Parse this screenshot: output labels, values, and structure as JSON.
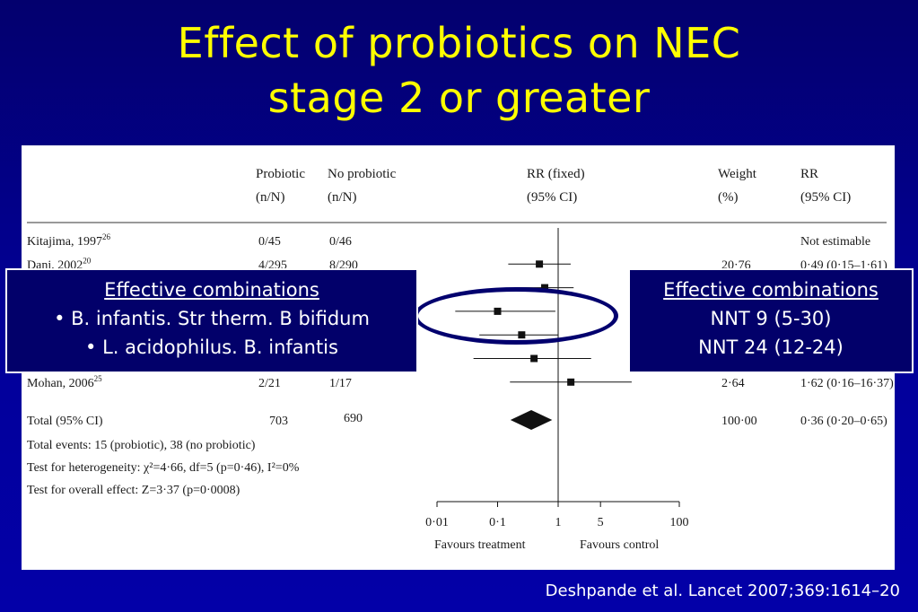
{
  "slide": {
    "title_line1": "Effect of probiotics on NEC",
    "title_line2": "stage 2 or greater",
    "citation": "Deshpande et al. Lancet 2007;369:1614–20"
  },
  "table": {
    "headers": {
      "probiotic_1": "Probiotic",
      "probiotic_2": "(n/N)",
      "noprobiotic_1": "No probiotic",
      "noprobiotic_2": "(n/N)",
      "rr_fixed_1": "RR (fixed)",
      "rr_fixed_2": "(95% CI)",
      "weight_1": "Weight",
      "weight_2": "(%)",
      "rr_1": "RR",
      "rr_2": "(95% CI)"
    },
    "summary_lines": [
      "Total events: 15 (probiotic), 38 (no probiotic)",
      "Test for heterogeneity: χ²=4·66, df=5 (p=0·46), I²=0%",
      "Test for overall effect: Z=3·37 (p=0·0008)"
    ]
  },
  "callout_left": {
    "heading": "Effective combinations",
    "line1": "• B. infantis. Str therm. B bifidum",
    "line2": "• L. acidophilus. B. infantis"
  },
  "callout_right": {
    "heading": "Effective combinations",
    "line1": "NNT 9 (5-30)",
    "line2": "NNT 24  (12-24)"
  },
  "chart_data": {
    "type": "forest",
    "x_scale": "log",
    "xlim": [
      0.01,
      100
    ],
    "ticks": [
      0.01,
      0.1,
      1,
      5,
      100
    ],
    "tick_labels": [
      "0·01",
      "0·1",
      "1",
      "5",
      "100"
    ],
    "xlabel_left": "Favours treatment",
    "xlabel_right": "Favours control",
    "studies": [
      {
        "name": "Kitajima, 1997",
        "sup": "26",
        "probiotic": "0/45",
        "no_probiotic": "0/46",
        "weight": "",
        "rr_text": "Not estimable",
        "rr": null,
        "lo": null,
        "hi": null
      },
      {
        "name": "Dani, 2002",
        "sup": "20",
        "probiotic": "4/295",
        "no_probiotic": "8/290",
        "weight": "20·76",
        "rr_text": "0·49 (0·15–1·61)",
        "rr": 0.49,
        "lo": 0.15,
        "hi": 1.61
      },
      {
        "name": "",
        "sup": "",
        "probiotic": "",
        "no_probiotic": "",
        "weight": "",
        "rr_text": "",
        "rr": 0.6,
        "lo": 0.2,
        "hi": 1.8
      },
      {
        "name": "",
        "sup": "",
        "probiotic": "",
        "no_probiotic": "",
        "weight": "",
        "rr_text": "",
        "rr": 0.1,
        "lo": 0.02,
        "hi": 0.9
      },
      {
        "name": "",
        "sup": "",
        "probiotic": "",
        "no_probiotic": "",
        "weight": "",
        "rr_text": "",
        "rr": 0.25,
        "lo": 0.05,
        "hi": 1.0
      },
      {
        "name": "",
        "sup": "",
        "probiotic": "",
        "no_probiotic": "",
        "weight": "",
        "rr_text": "",
        "rr": 0.4,
        "lo": 0.04,
        "hi": 3.5
      },
      {
        "name": "Mohan, 2006",
        "sup": "25",
        "probiotic": "2/21",
        "no_probiotic": "1/17",
        "weight": "2·64",
        "rr_text": "1·62 (0·16–16·37)",
        "rr": 1.62,
        "lo": 0.16,
        "hi": 16.37
      }
    ],
    "total": {
      "name": "Total (95% CI)",
      "probiotic": "703",
      "no_probiotic": "690",
      "weight": "100·00",
      "rr_text": "0·36 (0·20–0·65)",
      "rr": 0.36,
      "lo": 0.2,
      "hi": 0.65
    }
  }
}
